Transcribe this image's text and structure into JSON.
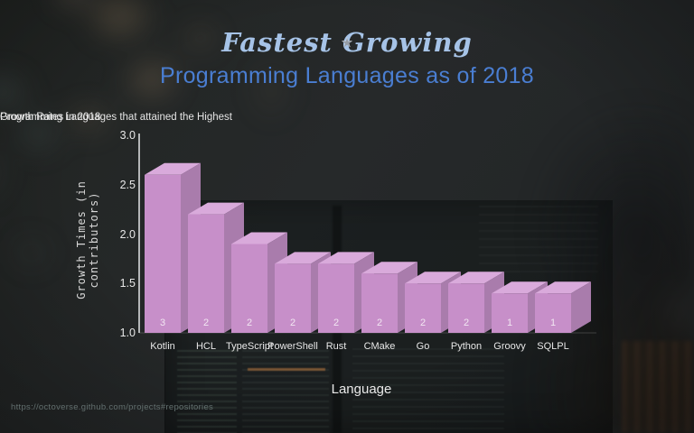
{
  "header": {
    "ribbon_title": "Fastest Growing",
    "ribbon_color": "#a6c3e7",
    "stars_left": [
      "★",
      "☆",
      "★"
    ],
    "stars_right": [
      "★",
      "☆",
      "★"
    ],
    "title": "Programming Languages as of 2018",
    "title_color": "#4a7ed2"
  },
  "chart_data": {
    "type": "bar",
    "title_lines": [
      "Programming Languages that attained the Highest",
      "Growth Rates in 2018"
    ],
    "categories": [
      "Kotlin",
      "HCL",
      "TypeScript",
      "PowerShell",
      "Rust",
      "CMake",
      "Go",
      "Python",
      "Groovy",
      "SQLPL"
    ],
    "values": [
      2.6,
      2.2,
      1.9,
      1.7,
      1.7,
      1.6,
      1.5,
      1.5,
      1.4,
      1.4
    ],
    "bar_labels": [
      "3",
      "2",
      "2",
      "2",
      "2",
      "2",
      "2",
      "2",
      "1",
      "1"
    ],
    "xlabel": "Language",
    "ylabel": "Growth Times (in contributors)",
    "ylim": [
      1.0,
      3.0
    ],
    "yticks": [
      3.0,
      2.5,
      2.0,
      1.5,
      1.0
    ],
    "grid": false,
    "legend": "none",
    "style": {
      "bar_front": "#c78fc9",
      "bar_top": "#d9aadb",
      "bar_side": "#a97cac",
      "bar_label_color": "#f2e6f2",
      "axis_color": "#d8dadd"
    }
  },
  "footer": {
    "source_url": "https://octoverse.github.com/projects#repositories"
  }
}
